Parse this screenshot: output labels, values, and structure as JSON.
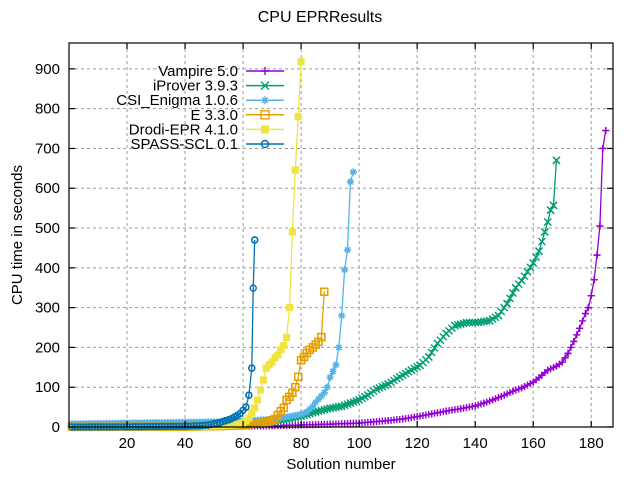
{
  "chart_data": {
    "type": "line",
    "title": "CPU EPRResults",
    "xlabel": "Solution number",
    "ylabel": "CPU time in seconds",
    "xlim": [
      0,
      187.5
    ],
    "ylim": [
      0,
      965
    ],
    "xticks": [
      20,
      40,
      60,
      80,
      100,
      120,
      140,
      160,
      180
    ],
    "yticks": [
      0,
      100,
      200,
      300,
      400,
      500,
      600,
      700,
      800,
      900
    ],
    "grid": true,
    "legend_position": "top-left",
    "background_color": "#ffffff",
    "border_color": "#000000",
    "grid_color": "#9b9b9b",
    "series": [
      {
        "name": "Vampire 5.0",
        "color": "#9400d3",
        "marker": "plus",
        "points": [
          [
            1,
            0.3
          ],
          [
            20,
            0.6
          ],
          [
            40,
            1.2
          ],
          [
            60,
            2
          ],
          [
            70,
            3
          ],
          [
            80,
            5
          ],
          [
            90,
            7
          ],
          [
            100,
            10
          ],
          [
            105,
            13
          ],
          [
            110,
            16
          ],
          [
            115,
            20
          ],
          [
            120,
            26
          ],
          [
            125,
            33
          ],
          [
            130,
            40
          ],
          [
            135,
            46
          ],
          [
            140,
            53
          ],
          [
            143,
            60
          ],
          [
            146,
            68
          ],
          [
            150,
            80
          ],
          [
            153,
            90
          ],
          [
            156,
            98
          ],
          [
            160,
            113
          ],
          [
            163,
            130
          ],
          [
            165,
            143
          ],
          [
            168,
            153
          ],
          [
            170,
            163
          ],
          [
            172,
            185
          ],
          [
            174,
            215
          ],
          [
            176,
            248
          ],
          [
            178,
            285
          ],
          [
            179,
            300
          ],
          [
            180,
            330
          ],
          [
            181,
            370
          ],
          [
            182,
            432
          ],
          [
            183,
            505
          ],
          [
            184,
            700
          ],
          [
            185,
            745
          ]
        ]
      },
      {
        "name": "iProver 3.9.3",
        "color": "#009e73",
        "marker": "cross",
        "points": [
          [
            1,
            0.3
          ],
          [
            20,
            1
          ],
          [
            40,
            2
          ],
          [
            50,
            4
          ],
          [
            55,
            6
          ],
          [
            60,
            8
          ],
          [
            65,
            10
          ],
          [
            70,
            13
          ],
          [
            75,
            19
          ],
          [
            80,
            27
          ],
          [
            85,
            38
          ],
          [
            90,
            47
          ],
          [
            94,
            52
          ],
          [
            97,
            60
          ],
          [
            100,
            68
          ],
          [
            103,
            80
          ],
          [
            106,
            95
          ],
          [
            110,
            108
          ],
          [
            114,
            126
          ],
          [
            118,
            143
          ],
          [
            121,
            155
          ],
          [
            124,
            176
          ],
          [
            127,
            210
          ],
          [
            130,
            235
          ],
          [
            133,
            255
          ],
          [
            137,
            262
          ],
          [
            141,
            263
          ],
          [
            145,
            267
          ],
          [
            148,
            280
          ],
          [
            151,
            310
          ],
          [
            154,
            350
          ],
          [
            156,
            368
          ],
          [
            158,
            390
          ],
          [
            160,
            412
          ],
          [
            162,
            442
          ],
          [
            164,
            490
          ],
          [
            165,
            515
          ],
          [
            166,
            545
          ],
          [
            167,
            557
          ],
          [
            168,
            670
          ]
        ]
      },
      {
        "name": "CSI_Enigma 1.0.6",
        "color": "#56b4e9",
        "marker": "asterisk",
        "points": [
          [
            1,
            8
          ],
          [
            10,
            9
          ],
          [
            20,
            10
          ],
          [
            30,
            11
          ],
          [
            40,
            12
          ],
          [
            50,
            13
          ],
          [
            55,
            14
          ],
          [
            60,
            15
          ],
          [
            65,
            17
          ],
          [
            70,
            20
          ],
          [
            75,
            25
          ],
          [
            80,
            32
          ],
          [
            82,
            38
          ],
          [
            84,
            52
          ],
          [
            85,
            62
          ],
          [
            86,
            70
          ],
          [
            87,
            78
          ],
          [
            88,
            86
          ],
          [
            89,
            100
          ],
          [
            90,
            125
          ],
          [
            91,
            140
          ],
          [
            92,
            156
          ],
          [
            93,
            200
          ],
          [
            94,
            280
          ],
          [
            95,
            395
          ],
          [
            96,
            445
          ],
          [
            97,
            616
          ],
          [
            98,
            641
          ]
        ]
      },
      {
        "name": "E 3.3.0",
        "color": "#e69f00",
        "marker": "square-open",
        "points": [
          [
            1,
            0.3
          ],
          [
            20,
            0.6
          ],
          [
            40,
            1
          ],
          [
            50,
            2
          ],
          [
            55,
            3
          ],
          [
            60,
            5
          ],
          [
            64,
            8
          ],
          [
            67,
            11
          ],
          [
            69,
            14
          ],
          [
            71,
            20
          ],
          [
            72,
            30
          ],
          [
            73,
            40
          ],
          [
            74,
            48
          ],
          [
            75,
            68
          ],
          [
            76,
            76
          ],
          [
            77,
            86
          ],
          [
            78,
            100
          ],
          [
            79,
            126
          ],
          [
            80,
            168
          ],
          [
            81,
            176
          ],
          [
            82,
            186
          ],
          [
            83,
            194
          ],
          [
            84,
            200
          ],
          [
            85,
            207
          ],
          [
            86,
            214
          ],
          [
            87,
            226
          ],
          [
            88,
            340
          ]
        ]
      },
      {
        "name": "Drodi-EPR 4.1.0",
        "color": "#f0e442",
        "marker": "square-filled",
        "points": [
          [
            1,
            0.3
          ],
          [
            20,
            0.8
          ],
          [
            40,
            1.5
          ],
          [
            50,
            2.5
          ],
          [
            55,
            4
          ],
          [
            58,
            6
          ],
          [
            60,
            10
          ],
          [
            61,
            15
          ],
          [
            62,
            22
          ],
          [
            63,
            35
          ],
          [
            64,
            48
          ],
          [
            65,
            68
          ],
          [
            66,
            93
          ],
          [
            67,
            118
          ],
          [
            68,
            148
          ],
          [
            69,
            156
          ],
          [
            70,
            163
          ],
          [
            71,
            174
          ],
          [
            72,
            181
          ],
          [
            73,
            194
          ],
          [
            74,
            205
          ],
          [
            75,
            225
          ],
          [
            76,
            300
          ],
          [
            77,
            490
          ],
          [
            78,
            646
          ],
          [
            79,
            780
          ],
          [
            80,
            918
          ]
        ]
      },
      {
        "name": "SPASS-SCL 0.1",
        "color": "#0072b2",
        "marker": "circle-open",
        "points": [
          [
            1,
            0.2
          ],
          [
            20,
            0.5
          ],
          [
            40,
            2
          ],
          [
            45,
            3
          ],
          [
            48,
            5
          ],
          [
            50,
            8
          ],
          [
            52,
            11
          ],
          [
            54,
            16
          ],
          [
            55,
            18
          ],
          [
            56,
            21
          ],
          [
            57,
            25
          ],
          [
            58,
            29
          ],
          [
            59,
            34
          ],
          [
            60,
            42
          ],
          [
            61,
            50
          ],
          [
            62,
            80
          ],
          [
            63,
            148
          ],
          [
            63.5,
            349
          ],
          [
            64,
            470
          ]
        ]
      }
    ]
  }
}
